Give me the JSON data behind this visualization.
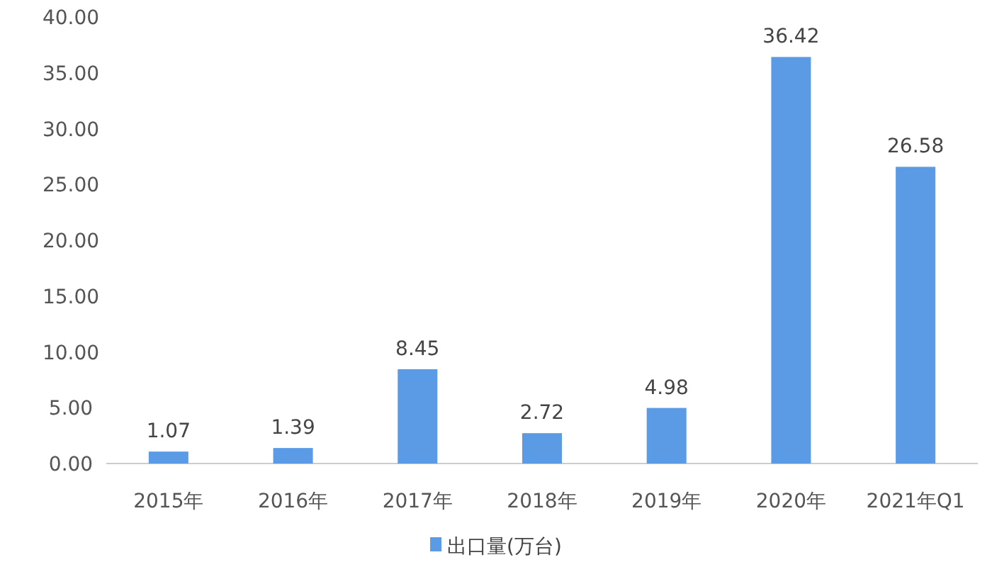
{
  "chart_data": {
    "type": "bar",
    "categories": [
      "2015年",
      "2016年",
      "2017年",
      "2018年",
      "2019年",
      "2020年",
      "2021年Q1"
    ],
    "series": [
      {
        "name": "出口量(万台)",
        "color": "#5b9be6",
        "values": [
          1.07,
          1.39,
          8.45,
          2.72,
          4.98,
          36.42,
          26.58
        ]
      }
    ],
    "ylim": [
      0,
      40
    ],
    "yticks": [
      {
        "value": 0,
        "label": "0.00"
      },
      {
        "value": 5,
        "label": "5.00"
      },
      {
        "value": 10,
        "label": "10.00"
      },
      {
        "value": 15,
        "label": "15.00"
      },
      {
        "value": 20,
        "label": "20.00"
      },
      {
        "value": 25,
        "label": "25.00"
      },
      {
        "value": 30,
        "label": "30.00"
      },
      {
        "value": 35,
        "label": "35.00"
      },
      {
        "value": 40,
        "label": "40.00"
      }
    ],
    "data_labels": true,
    "grid": false,
    "legend": "bottom"
  }
}
